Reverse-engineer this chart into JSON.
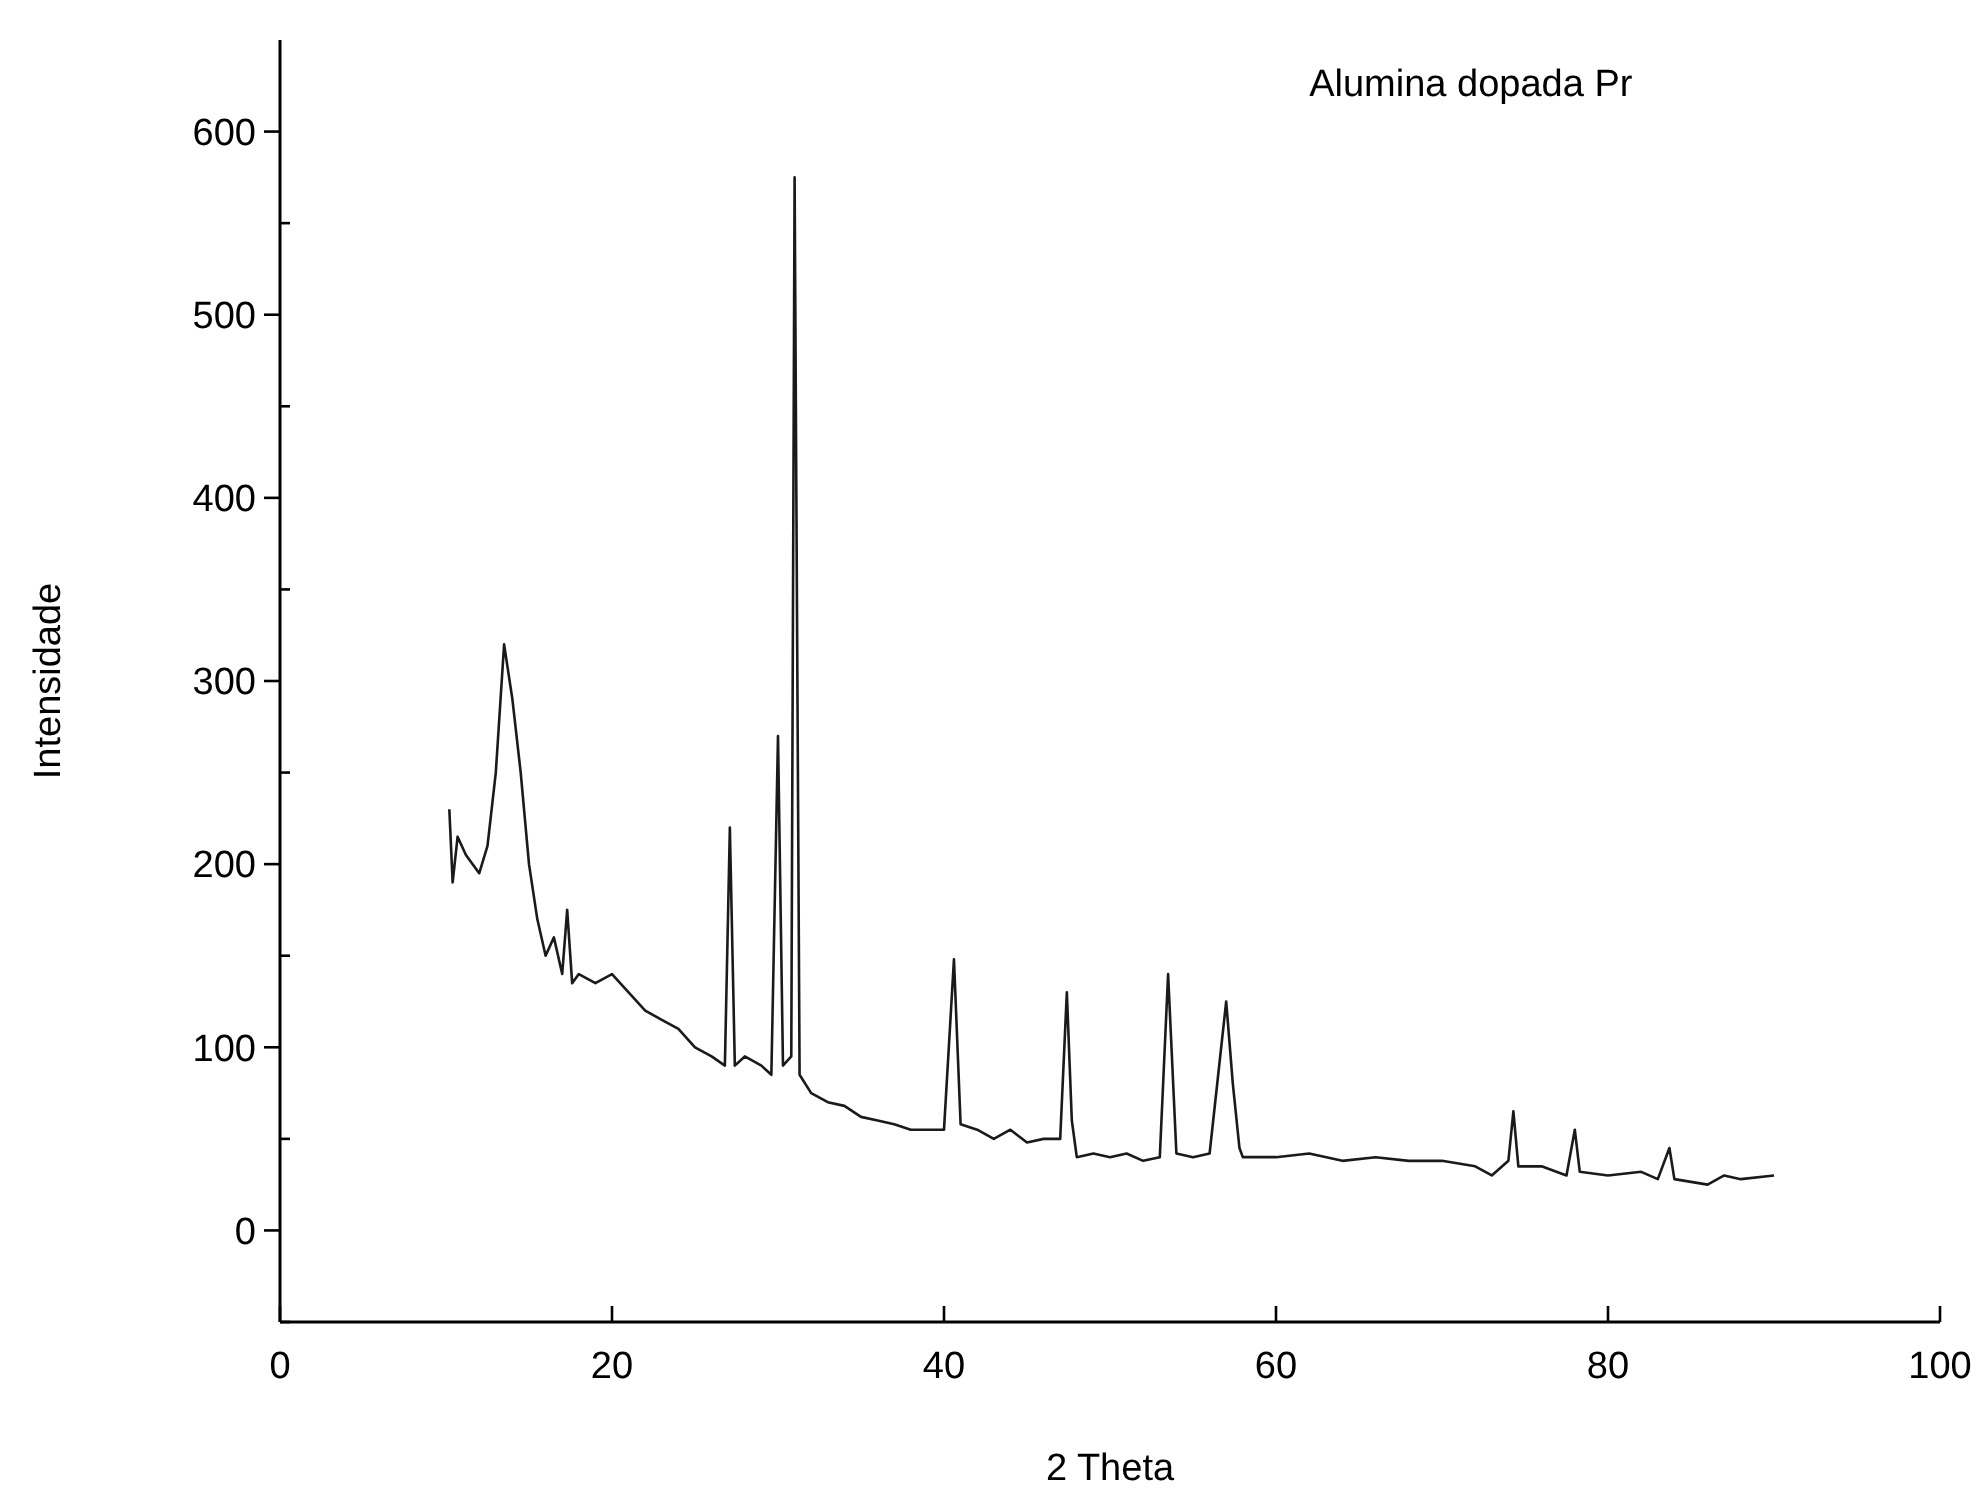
{
  "chart_data": {
    "type": "line",
    "title": "Alumina dopada Pr",
    "xlabel": "2 Theta",
    "ylabel": "Intensidade",
    "xlim": [
      0,
      100
    ],
    "xticks": [
      0,
      20,
      40,
      60,
      80,
      100
    ],
    "ylim": [
      -50,
      650
    ],
    "yticks": [
      {
        "value": -50,
        "label": null
      },
      0,
      {
        "value": 50,
        "label": null
      },
      100,
      {
        "value": 150,
        "label": null
      },
      200,
      {
        "value": 250,
        "label": null
      },
      300,
      {
        "value": 350,
        "label": null
      },
      400,
      {
        "value": 450,
        "label": null
      },
      500,
      {
        "value": 550,
        "label": null
      },
      600
    ],
    "grid": false,
    "marker": "none",
    "line_style": "solid",
    "series": [
      {
        "color": "#1a1a1a",
        "x": [
          10.2,
          10.4,
          10.7,
          11.2,
          12,
          12.5,
          13,
          13.5,
          14,
          14.5,
          15,
          15.5,
          16,
          16.5,
          17,
          17.3,
          17.6,
          18,
          19,
          20,
          21,
          22,
          23,
          24,
          25,
          26,
          26.8,
          27.1,
          27.4,
          28,
          29,
          29.6,
          30,
          30.3,
          30.8,
          31,
          31.3,
          32,
          33,
          34,
          35,
          36,
          37,
          38,
          39,
          40,
          40.6,
          41,
          42,
          43,
          44,
          45,
          46,
          47,
          47.4,
          47.7,
          48,
          49,
          50,
          51,
          52,
          53,
          53.5,
          54,
          55,
          56,
          57,
          57.4,
          57.8,
          58,
          60,
          62,
          64,
          66,
          68,
          70,
          72,
          73,
          74,
          74.3,
          74.6,
          76,
          77.5,
          78,
          78.3,
          80,
          82,
          83,
          83.7,
          84,
          86,
          87,
          88,
          90
        ],
        "values": [
          230,
          190,
          215,
          205,
          195,
          210,
          250,
          320,
          290,
          250,
          200,
          170,
          150,
          160,
          140,
          175,
          135,
          140,
          135,
          140,
          130,
          120,
          115,
          110,
          100,
          95,
          90,
          220,
          90,
          95,
          90,
          85,
          270,
          90,
          95,
          575,
          85,
          75,
          70,
          68,
          62,
          60,
          58,
          55,
          55,
          55,
          148,
          58,
          55,
          50,
          55,
          48,
          50,
          50,
          130,
          60,
          40,
          42,
          40,
          42,
          38,
          40,
          140,
          42,
          40,
          42,
          125,
          80,
          45,
          40,
          40,
          42,
          38,
          40,
          38,
          38,
          35,
          30,
          38,
          65,
          35,
          35,
          30,
          55,
          32,
          30,
          32,
          28,
          45,
          28,
          25,
          30,
          28,
          30
        ]
      }
    ]
  }
}
